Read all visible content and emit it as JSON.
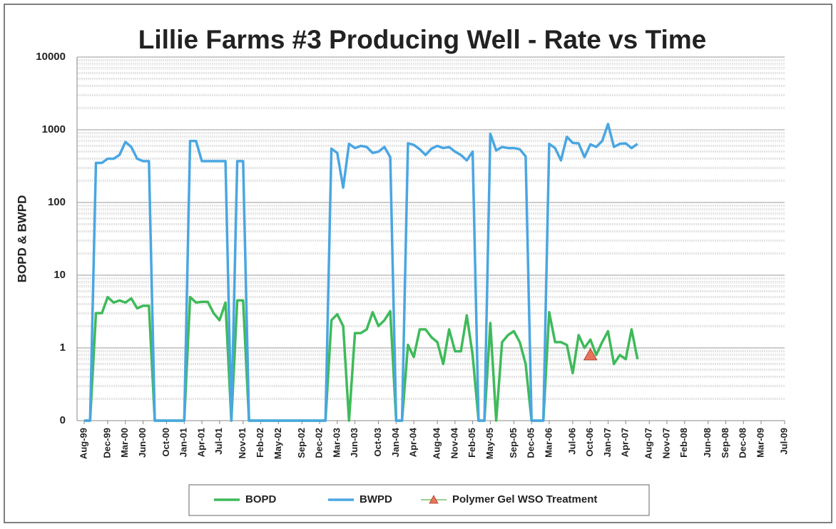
{
  "chart_data": {
    "type": "line",
    "title": "Lillie Farms #3 Producing Well - Rate vs Time",
    "ylabel": "BOPD & BWPD",
    "log_scale": true,
    "grid": true,
    "minor_grid": true,
    "legend": "bottom",
    "ylim": [
      0.1,
      10000
    ],
    "yticks": [
      {
        "value": 0.1,
        "label": "0"
      },
      1,
      10,
      100,
      1000,
      10000
    ],
    "categories": [
      "Aug-99",
      null,
      null,
      null,
      "Dec-99",
      null,
      null,
      "Mar-00",
      null,
      null,
      "Jun-00",
      null,
      null,
      null,
      "Oct-00",
      null,
      null,
      "Jan-01",
      null,
      null,
      "Apr-01",
      null,
      null,
      "Jul-01",
      null,
      null,
      null,
      "Nov-01",
      null,
      null,
      "Feb-02",
      null,
      null,
      "May-02",
      null,
      null,
      null,
      "Sep-02",
      null,
      null,
      "Dec-02",
      null,
      null,
      "Mar-03",
      null,
      null,
      "Jun-03",
      null,
      null,
      null,
      "Oct-03",
      null,
      null,
      "Jan-04",
      null,
      null,
      "Apr-04",
      null,
      null,
      null,
      "Aug-04",
      null,
      null,
      "Nov-04",
      null,
      null,
      "Feb-05",
      null,
      null,
      "May-05",
      null,
      null,
      null,
      "Sep-05",
      null,
      null,
      "Dec-05",
      null,
      null,
      "Mar-06",
      null,
      null,
      null,
      "Jul-06",
      null,
      null,
      "Oct-06",
      null,
      null,
      "Jan-07",
      null,
      null,
      "Apr-07",
      null,
      null,
      null,
      "Aug-07",
      null,
      null,
      "Nov-07",
      null,
      null,
      "Feb-08",
      null,
      null,
      null,
      "Jun-08",
      null,
      null,
      "Sep-08",
      null,
      null,
      "Dec-08",
      null,
      null,
      "Mar-09",
      null,
      null,
      null,
      "Jul-09"
    ],
    "series": [
      {
        "name": "BOPD",
        "color": "#3fba5a",
        "values": [
          0.1,
          0.1,
          3,
          3,
          5,
          4.2,
          4.5,
          4.2,
          4.8,
          3.5,
          3.8,
          3.8,
          0.1,
          0.1,
          0.1,
          0.1,
          0.1,
          0.1,
          5,
          4.2,
          4.3,
          4.3,
          3,
          2.4,
          4.2,
          0.1,
          4.5,
          4.5,
          0.1,
          0.1,
          0.1,
          0.1,
          0.1,
          0.1,
          0.1,
          0.1,
          0.1,
          0.1,
          0.1,
          0.1,
          0.1,
          0.1,
          2.4,
          2.9,
          2,
          0.1,
          1.6,
          1.6,
          1.8,
          3.1,
          2,
          2.4,
          3.2,
          0.1,
          0.1,
          1.1,
          0.75,
          1.8,
          1.8,
          1.4,
          1.2,
          0.6,
          1.8,
          0.9,
          0.9,
          2.8,
          0.8,
          0.1,
          0.1,
          2.2,
          0.1,
          1.2,
          1.5,
          1.7,
          1.2,
          0.6,
          0.1,
          0.1,
          0.1,
          3.1,
          1.2,
          1.2,
          1.1,
          0.45,
          1.5,
          1,
          1.3,
          0.8,
          1.2,
          1.7,
          0.6,
          0.8,
          0.7,
          1.8,
          0.7,
          null,
          null,
          null,
          null,
          null,
          null,
          null,
          null,
          null,
          null,
          null,
          null,
          null,
          null,
          null,
          null,
          null,
          null,
          null,
          null,
          null,
          null,
          null,
          null,
          null
        ]
      },
      {
        "name": "BWPD",
        "color": "#4aa6e2",
        "values": [
          0.1,
          0.1,
          350,
          350,
          400,
          400,
          450,
          680,
          580,
          400,
          370,
          370,
          0.1,
          0.1,
          0.1,
          0.1,
          0.1,
          0.1,
          700,
          700,
          370,
          370,
          370,
          370,
          370,
          0.1,
          370,
          370,
          0.1,
          0.1,
          0.1,
          0.1,
          0.1,
          0.1,
          0.1,
          0.1,
          0.1,
          0.1,
          0.1,
          0.1,
          0.1,
          0.1,
          550,
          480,
          160,
          640,
          560,
          600,
          580,
          480,
          500,
          580,
          420,
          0.1,
          0.1,
          650,
          620,
          540,
          450,
          550,
          600,
          560,
          580,
          500,
          450,
          380,
          500,
          0.1,
          0.1,
          880,
          520,
          580,
          560,
          560,
          540,
          430,
          0.1,
          0.1,
          0.1,
          640,
          560,
          380,
          800,
          660,
          650,
          420,
          630,
          580,
          700,
          1200,
          580,
          640,
          650,
          560,
          640,
          null,
          null,
          null,
          null,
          null,
          null,
          null,
          null,
          null,
          null,
          null,
          null,
          null,
          null,
          null,
          null,
          null,
          null,
          null,
          null,
          null,
          null,
          null,
          null,
          null
        ]
      },
      {
        "name": "Polymer Gel WSO Treatment",
        "color": "#e8735a",
        "marker": "triangle",
        "values": [
          null,
          null,
          null,
          null,
          null,
          null,
          null,
          null,
          null,
          null,
          null,
          null,
          null,
          null,
          null,
          null,
          null,
          null,
          null,
          null,
          null,
          null,
          null,
          null,
          null,
          null,
          null,
          null,
          null,
          null,
          null,
          null,
          null,
          null,
          null,
          null,
          null,
          null,
          null,
          null,
          null,
          null,
          null,
          null,
          null,
          null,
          null,
          null,
          null,
          null,
          null,
          null,
          null,
          null,
          null,
          null,
          null,
          null,
          null,
          null,
          null,
          null,
          null,
          null,
          null,
          null,
          null,
          null,
          null,
          null,
          null,
          null,
          null,
          null,
          null,
          null,
          null,
          null,
          null,
          null,
          null,
          null,
          null,
          null,
          null,
          null,
          0.8,
          null,
          null,
          null,
          null,
          null,
          null,
          null,
          null,
          null,
          null,
          null,
          null,
          null,
          null,
          null,
          null,
          null,
          null,
          null,
          null,
          null,
          null,
          null,
          null,
          null,
          null,
          null,
          null,
          null,
          null,
          null,
          null,
          null
        ]
      }
    ]
  }
}
